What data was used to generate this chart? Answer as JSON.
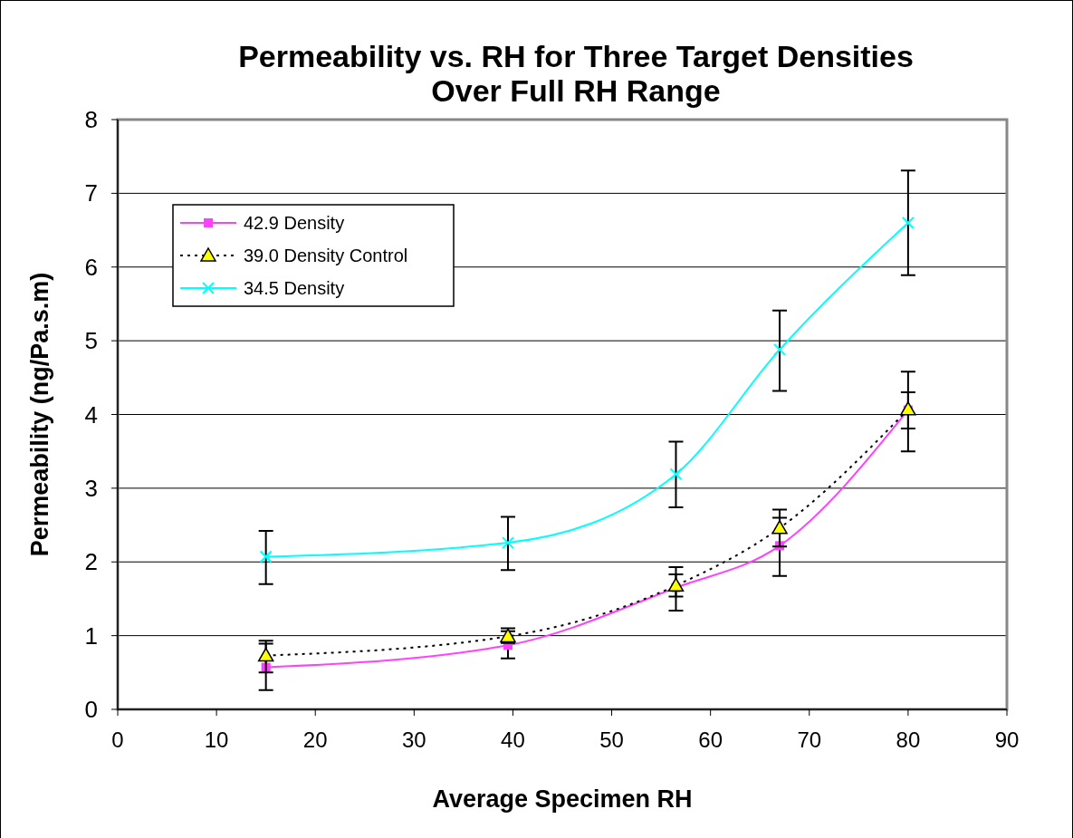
{
  "chart_data": {
    "type": "line",
    "title": "Permeability vs. RH for Three Target Densities\nOver Full RH Range",
    "xlabel": "Average Specimen RH",
    "ylabel": "Permeability (ng/Pa.s.m)",
    "x": [
      15,
      39.5,
      56.5,
      67,
      80
    ],
    "xlim": [
      0,
      90
    ],
    "xticks": [
      0,
      10,
      20,
      30,
      40,
      50,
      60,
      70,
      80,
      90
    ],
    "ylim": [
      0,
      8
    ],
    "yticks": [
      0,
      1,
      2,
      3,
      4,
      5,
      6,
      7,
      8
    ],
    "grid": "y",
    "legend": "top left",
    "series": [
      {
        "name": "42.9 Density",
        "color": "#ff40ff",
        "marker": "square",
        "line_style": "solid",
        "values": [
          0.57,
          0.87,
          1.65,
          2.22,
          4.06
        ],
        "errors": [
          [
            0.26,
            0.89
          ],
          [
            0.69,
            1.06
          ],
          [
            1.34,
            1.93
          ],
          [
            1.81,
            2.6
          ],
          [
            3.5,
            4.58
          ]
        ]
      },
      {
        "name": "39.0 Density Control",
        "color": "#000000",
        "colors": [
          "#ffff00",
          "#ffff00",
          "#ffff00",
          "#ffff00",
          "#ffff00"
        ],
        "marker": "triangle",
        "line_style": "dotted",
        "values": [
          0.73,
          0.99,
          1.68,
          2.46,
          4.07
        ],
        "errors": [
          [
            0.5,
            0.93
          ],
          [
            0.9,
            1.1
          ],
          [
            1.53,
            1.83
          ],
          [
            2.21,
            2.71
          ],
          [
            3.81,
            4.3
          ]
        ]
      },
      {
        "name": "34.5 Density",
        "color": "#00ffff",
        "marker": "cross",
        "line_style": "solid",
        "values": [
          2.07,
          2.26,
          3.19,
          4.88,
          6.6
        ],
        "errors": [
          [
            1.7,
            2.42
          ],
          [
            1.89,
            2.61
          ],
          [
            2.74,
            3.63
          ],
          [
            4.32,
            5.41
          ],
          [
            5.89,
            7.31
          ]
        ]
      }
    ]
  }
}
